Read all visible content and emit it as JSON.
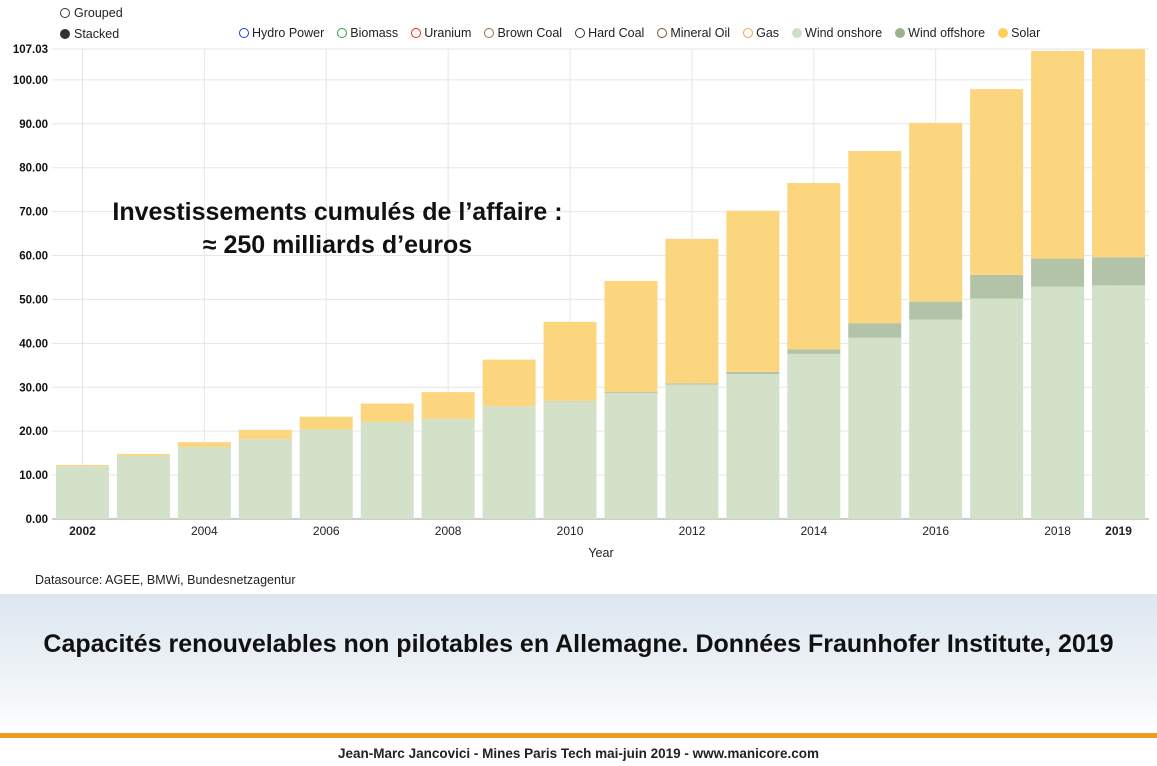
{
  "controls": {
    "grouped_label": "Grouped",
    "stacked_label": "Stacked",
    "selected": "Stacked"
  },
  "legend": [
    {
      "name": "Hydro Power",
      "color": "#1f3fd0",
      "hollow": true
    },
    {
      "name": "Biomass",
      "color": "#2ea043",
      "hollow": true
    },
    {
      "name": "Uranium",
      "color": "#e0261b",
      "hollow": true
    },
    {
      "name": "Brown Coal",
      "color": "#8a6e55",
      "hollow": true
    },
    {
      "name": "Hard Coal",
      "color": "#333333",
      "hollow": true
    },
    {
      "name": "Mineral Oil",
      "color": "#7a5230",
      "hollow": true
    },
    {
      "name": "Gas",
      "color": "#f2a24b",
      "hollow": true
    },
    {
      "name": "Wind onshore",
      "color": "#cfdec6",
      "hollow": false
    },
    {
      "name": "Wind offshore",
      "color": "#9cb08f",
      "hollow": false
    },
    {
      "name": "Solar",
      "color": "#fbcf5a",
      "hollow": false
    }
  ],
  "chart_data": {
    "type": "bar",
    "stacked": true,
    "xlabel": "Year",
    "ylabel": "",
    "ylim": [
      0,
      107.03
    ],
    "y_ticks": [
      "0.00",
      "10.00",
      "20.00",
      "30.00",
      "40.00",
      "50.00",
      "60.00",
      "70.00",
      "80.00",
      "90.00",
      "100.00",
      "107.03"
    ],
    "categories": [
      2002,
      2003,
      2004,
      2005,
      2006,
      2007,
      2008,
      2009,
      2010,
      2011,
      2012,
      2013,
      2014,
      2015,
      2016,
      2017,
      2018,
      2019
    ],
    "x_tick_labels": [
      "2002",
      "",
      "2004",
      "",
      "2006",
      "",
      "2008",
      "",
      "2010",
      "",
      "2012",
      "",
      "2014",
      "",
      "2016",
      "",
      "2018",
      "2019"
    ],
    "bold_ticks": [
      "2002",
      "2019"
    ],
    "series": [
      {
        "name": "Wind onshore",
        "color": "#d3e1c9",
        "values": [
          12.0,
          14.4,
          16.4,
          18.2,
          20.4,
          22.1,
          22.8,
          25.7,
          26.8,
          28.7,
          30.6,
          33.0,
          37.6,
          41.3,
          45.4,
          50.2,
          52.9,
          53.2
        ]
      },
      {
        "name": "Wind offshore",
        "color": "#b3c3a8",
        "values": [
          0,
          0,
          0,
          0,
          0,
          0,
          0,
          0,
          0.1,
          0.2,
          0.3,
          0.5,
          1.0,
          3.3,
          4.1,
          5.4,
          6.4,
          6.4
        ]
      },
      {
        "name": "Solar",
        "color": "#fcd67e",
        "values": [
          0.3,
          0.4,
          1.1,
          2.1,
          2.9,
          4.2,
          6.1,
          10.6,
          18.0,
          25.3,
          32.9,
          36.7,
          37.9,
          39.2,
          40.7,
          42.3,
          47.3,
          47.4
        ]
      }
    ]
  },
  "annotation": "Investissements cumulés de l’affaire : ≈ 250 milliards d’euros",
  "datasource": "Datasource: AGEE, BMWi, Bundesnetzagentur",
  "caption": "Capacités renouvelables non pilotables en Allemagne. Données Fraunhofer Institute, 2019",
  "footer": "Jean-Marc Jancovici - Mines Paris Tech mai-juin 2019 - www.manicore.com",
  "colors": {
    "accent_rule": "#f29a1e",
    "caption_band": "#dce6ef"
  }
}
